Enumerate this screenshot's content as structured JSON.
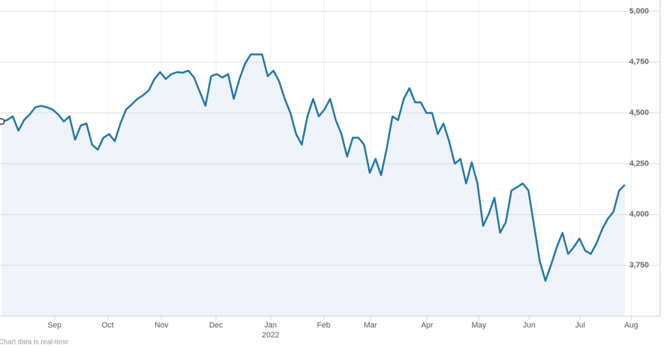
{
  "chart_data": {
    "type": "line",
    "color": "#2176a6",
    "area_color": "#eef4fa",
    "grid": true,
    "values": [
      4458,
      4465,
      4483,
      4413,
      4465,
      4493,
      4528,
      4535,
      4528,
      4517,
      4493,
      4458,
      4483,
      4368,
      4438,
      4448,
      4344,
      4319,
      4378,
      4396,
      4361,
      4448,
      4517,
      4542,
      4569,
      4587,
      4611,
      4667,
      4701,
      4667,
      4691,
      4701,
      4698,
      4708,
      4674,
      4604,
      4535,
      4681,
      4691,
      4674,
      4691,
      4569,
      4667,
      4743,
      4788,
      4788,
      4788,
      4681,
      4708,
      4656,
      4569,
      4500,
      4396,
      4344,
      4483,
      4569,
      4483,
      4517,
      4569,
      4465,
      4396,
      4285,
      4378,
      4378,
      4344,
      4205,
      4274,
      4194,
      4326,
      4483,
      4465,
      4569,
      4622,
      4552,
      4552,
      4500,
      4500,
      4396,
      4448,
      4361,
      4250,
      4274,
      4153,
      4257,
      4153,
      3944,
      4003,
      4083,
      3910,
      3962,
      4118,
      4135,
      4153,
      4118,
      3944,
      3771,
      3674,
      3753,
      3840,
      3910,
      3806,
      3840,
      3882,
      3823,
      3806,
      3858,
      3927,
      3979,
      4014,
      4118,
      4146
    ],
    "xlim": [
      0,
      110
    ],
    "xticks": [
      {
        "value": 9.375,
        "label": "Sep"
      },
      {
        "value": 18.75,
        "label": "Oct"
      },
      {
        "value": 28.25,
        "label": "Nov"
      },
      {
        "value": 37.875,
        "label": "Dec"
      },
      {
        "value": 47.5,
        "label": "Jan"
      },
      {
        "value": 56.875,
        "label": "Feb"
      },
      {
        "value": 65.125,
        "label": "Mar"
      },
      {
        "value": 75.125,
        "label": "Apr"
      },
      {
        "value": 84.25,
        "label": "May"
      },
      {
        "value": 93.125,
        "label": "Jun"
      },
      {
        "value": 102.125,
        "label": "Jul"
      },
      {
        "value": 111.125,
        "label": "Aug"
      }
    ],
    "year_label": "2022",
    "ylim": [
      3500,
      5000
    ],
    "yticks": [
      {
        "value": 3750,
        "label": "3,750"
      },
      {
        "value": 4000,
        "label": "4,000"
      },
      {
        "value": 4250,
        "label": "4,250"
      },
      {
        "value": 4500,
        "label": "4,500"
      },
      {
        "value": 4750,
        "label": "4,750"
      },
      {
        "value": 5000,
        "label": "5,000"
      }
    ],
    "footnote": "Chart data is real-time"
  }
}
